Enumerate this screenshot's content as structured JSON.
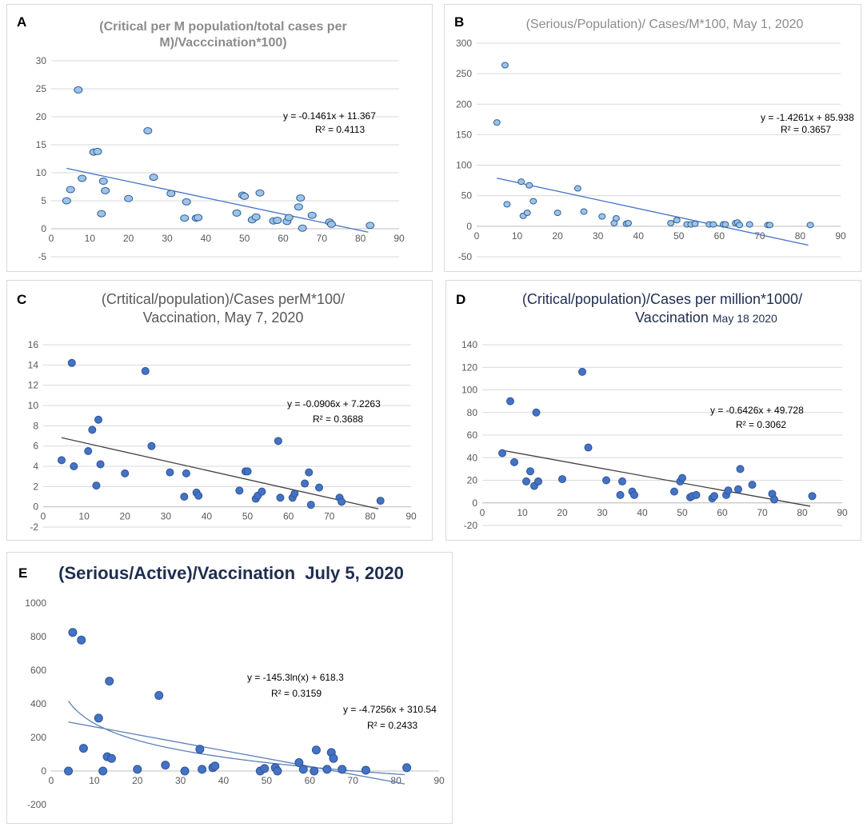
{
  "figure": {
    "panels": [
      {
        "letter": "A",
        "chart_data": {
          "type": "scatter",
          "title": "(Critical per M population/total cases per M)/Vacccination*100)",
          "title_lines": [
            "(Critical per M population/total cases per",
            "M)/Vacccination*100)"
          ],
          "ylim": [
            -5,
            30
          ],
          "yticks": [
            -5,
            0,
            5,
            10,
            15,
            20,
            25,
            30
          ],
          "xlim": [
            0,
            90
          ],
          "xticks": [
            0,
            10,
            20,
            30,
            40,
            50,
            60,
            70,
            80,
            90
          ],
          "grid": true,
          "points": [
            [
              4,
              5
            ],
            [
              5,
              7
            ],
            [
              7,
              24.8
            ],
            [
              8,
              9
            ],
            [
              11,
              13.7
            ],
            [
              12,
              13.8
            ],
            [
              13,
              2.7
            ],
            [
              13.5,
              8.5
            ],
            [
              14,
              6.8
            ],
            [
              20,
              5.4
            ],
            [
              25,
              17.5
            ],
            [
              26.5,
              9.2
            ],
            [
              31,
              6.3
            ],
            [
              34.5,
              1.9
            ],
            [
              35,
              4.8
            ],
            [
              37.5,
              1.9
            ],
            [
              38,
              2
            ],
            [
              48,
              2.8
            ],
            [
              49.5,
              6
            ],
            [
              50,
              5.8
            ],
            [
              52,
              1.6
            ],
            [
              53,
              2.1
            ],
            [
              54,
              6.4
            ],
            [
              57.5,
              1.4
            ],
            [
              58.5,
              1.5
            ],
            [
              61,
              1.3
            ],
            [
              61.5,
              2
            ],
            [
              64,
              3.9
            ],
            [
              64.5,
              5.5
            ],
            [
              65,
              0.1
            ],
            [
              67.5,
              2.4
            ],
            [
              72,
              1.2
            ],
            [
              72.5,
              0.8
            ],
            [
              82.5,
              0.6
            ]
          ],
          "trend": {
            "type": "linear",
            "slope": -0.1461,
            "intercept": 11.367,
            "x_range": [
              4,
              82
            ]
          },
          "equation": "y = -0.1461x + 11.367",
          "r2": "R² = 0.4113"
        }
      },
      {
        "letter": "B",
        "chart_data": {
          "type": "scatter",
          "title": "(Serious/Population)/ Cases/M*100, May 1, 2020",
          "title_lines": [
            "(Serious/Population)/ Cases/M*100, May 1, 2020"
          ],
          "ylim": [
            -50,
            300
          ],
          "yticks": [
            -50,
            0,
            50,
            100,
            150,
            200,
            250,
            300
          ],
          "xlim": [
            0,
            90
          ],
          "xticks": [
            0,
            10,
            20,
            30,
            40,
            50,
            60,
            70,
            80,
            90
          ],
          "grid": true,
          "points": [
            [
              5,
              170
            ],
            [
              7,
              264
            ],
            [
              7.5,
              36
            ],
            [
              11,
              73
            ],
            [
              11.5,
              17
            ],
            [
              12.5,
              22
            ],
            [
              13,
              67
            ],
            [
              14,
              41
            ],
            [
              20,
              22
            ],
            [
              25,
              62
            ],
            [
              26.5,
              24
            ],
            [
              31,
              16
            ],
            [
              34,
              5
            ],
            [
              34.5,
              13
            ],
            [
              37,
              4
            ],
            [
              37.5,
              5
            ],
            [
              48,
              5
            ],
            [
              49.5,
              10
            ],
            [
              52,
              3
            ],
            [
              53,
              3
            ],
            [
              54,
              4
            ],
            [
              57.5,
              3
            ],
            [
              58.5,
              3
            ],
            [
              61,
              3
            ],
            [
              61.5,
              3
            ],
            [
              64,
              5
            ],
            [
              64.5,
              6
            ],
            [
              65,
              2
            ],
            [
              67.5,
              3
            ],
            [
              72,
              2
            ],
            [
              72.5,
              2
            ],
            [
              82.5,
              2
            ]
          ],
          "trend": {
            "type": "linear",
            "slope": -1.4261,
            "intercept": 85.938,
            "x_range": [
              5,
              82
            ]
          },
          "equation": "y = -1.4261x + 85.938",
          "r2": "R² = 0.3657"
        }
      },
      {
        "letter": "C",
        "chart_data": {
          "type": "scatter",
          "title": "(Crtitical/population)/Cases perM*100/ Vaccination, May 7, 2020",
          "title_lines": [
            "(Crtitical/population)/Cases perM*100/",
            "Vaccination, May 7, 2020"
          ],
          "ylim": [
            -2,
            16
          ],
          "yticks": [
            -2,
            0,
            2,
            4,
            6,
            8,
            10,
            12,
            14,
            16
          ],
          "xlim": [
            0,
            90
          ],
          "xticks": [
            0,
            10,
            20,
            30,
            40,
            50,
            60,
            70,
            80,
            90
          ],
          "grid": true,
          "points": [
            [
              4.5,
              4.6
            ],
            [
              7,
              14.2
            ],
            [
              7.5,
              4.0
            ],
            [
              11,
              5.5
            ],
            [
              12,
              7.6
            ],
            [
              13,
              2.1
            ],
            [
              13.5,
              8.6
            ],
            [
              14,
              4.2
            ],
            [
              20,
              3.3
            ],
            [
              25,
              13.4
            ],
            [
              26.5,
              6.0
            ],
            [
              31,
              3.4
            ],
            [
              34.5,
              1.0
            ],
            [
              35,
              3.3
            ],
            [
              37.5,
              1.4
            ],
            [
              38,
              1.1
            ],
            [
              48,
              1.6
            ],
            [
              49.5,
              3.5
            ],
            [
              50,
              3.5
            ],
            [
              52,
              0.8
            ],
            [
              52.5,
              1.1
            ],
            [
              53.5,
              1.5
            ],
            [
              57.5,
              6.5
            ],
            [
              58,
              0.9
            ],
            [
              61,
              0.9
            ],
            [
              61.5,
              1.3
            ],
            [
              64,
              2.3
            ],
            [
              65,
              3.4
            ],
            [
              65.5,
              0.2
            ],
            [
              67.5,
              1.9
            ],
            [
              72.5,
              0.9
            ],
            [
              73,
              0.5
            ],
            [
              82.5,
              0.6
            ]
          ],
          "trend": {
            "type": "linear",
            "slope": -0.0906,
            "intercept": 7.2263,
            "x_range": [
              4.5,
              82
            ]
          },
          "equation": "y = -0.0906x + 7.2263",
          "r2": "R² = 0.3688"
        }
      },
      {
        "letter": "D",
        "chart_data": {
          "type": "scatter",
          "title": "(Critical/population)/Cases per million*1000/ Vaccination May 18 2020",
          "title_lines": [
            "(Critical/population)/Cases per million*1000/",
            "Vaccination"
          ],
          "title_date": "May 18 2020",
          "ylim": [
            -20,
            140
          ],
          "yticks": [
            -20,
            0,
            20,
            40,
            60,
            80,
            100,
            120,
            140
          ],
          "xlim": [
            0,
            90
          ],
          "xticks": [
            0,
            10,
            20,
            30,
            40,
            50,
            60,
            70,
            80,
            90
          ],
          "grid": true,
          "points": [
            [
              5,
              44
            ],
            [
              7,
              90
            ],
            [
              8,
              36
            ],
            [
              11,
              19
            ],
            [
              12,
              28
            ],
            [
              13,
              15
            ],
            [
              13.5,
              80
            ],
            [
              14,
              19
            ],
            [
              20,
              21
            ],
            [
              25,
              116
            ],
            [
              26.5,
              49
            ],
            [
              31,
              20
            ],
            [
              34.5,
              7
            ],
            [
              35,
              19
            ],
            [
              37.5,
              10
            ],
            [
              38,
              7
            ],
            [
              48,
              10
            ],
            [
              49.5,
              19
            ],
            [
              50,
              22
            ],
            [
              52,
              5
            ],
            [
              52.5,
              6
            ],
            [
              53.5,
              7
            ],
            [
              57.5,
              4
            ],
            [
              58,
              6
            ],
            [
              61,
              7
            ],
            [
              61.5,
              11
            ],
            [
              64,
              12
            ],
            [
              64.5,
              30
            ],
            [
              67.5,
              16
            ],
            [
              72.5,
              8
            ],
            [
              73,
              3
            ],
            [
              82.5,
              6
            ]
          ],
          "trend": {
            "type": "linear",
            "slope": -0.6426,
            "intercept": 49.728,
            "x_range": [
              5,
              82
            ]
          },
          "equation": "y = -0.6426x + 49.728",
          "r2": "R² = 0.3062"
        }
      },
      {
        "letter": "E",
        "chart_data": {
          "type": "scatter",
          "title": "(Serious/Active)/Vaccination July 5, 2020",
          "title_lines": [
            "(Serious/Active)/Vaccination  July 5, 2020"
          ],
          "ylim": [
            -200,
            1000
          ],
          "yticks": [
            -200,
            0,
            200,
            400,
            600,
            800,
            1000
          ],
          "xlim": [
            0,
            90
          ],
          "xticks": [
            0,
            10,
            20,
            30,
            40,
            50,
            60,
            70,
            80,
            90
          ],
          "grid": false,
          "points": [
            [
              4,
              0
            ],
            [
              5,
              825
            ],
            [
              7,
              780
            ],
            [
              7.5,
              135
            ],
            [
              11,
              315
            ],
            [
              12,
              0
            ],
            [
              13,
              85
            ],
            [
              13.5,
              535
            ],
            [
              14,
              75
            ],
            [
              20,
              10
            ],
            [
              25,
              450
            ],
            [
              26.5,
              35
            ],
            [
              31,
              0
            ],
            [
              34.5,
              130
            ],
            [
              35,
              10
            ],
            [
              37.5,
              20
            ],
            [
              38,
              30
            ],
            [
              48.5,
              0
            ],
            [
              49.5,
              15
            ],
            [
              52,
              20
            ],
            [
              52.5,
              0
            ],
            [
              57.5,
              50
            ],
            [
              58.5,
              10
            ],
            [
              61.5,
              125
            ],
            [
              61,
              0
            ],
            [
              64,
              10
            ],
            [
              65,
              110
            ],
            [
              65.5,
              75
            ],
            [
              67.5,
              10
            ],
            [
              73,
              5
            ],
            [
              82.5,
              20
            ]
          ],
          "trend": {
            "type": "linear",
            "slope": -4.7256,
            "intercept": 310.54,
            "x_range": [
              4,
              82
            ]
          },
          "trend_log": {
            "type": "log",
            "a": -145.3,
            "b": 618.3,
            "x_range": [
              4,
              82
            ]
          },
          "equation": "y = -4.7256x + 310.54",
          "r2": "R² = 0.2433",
          "equation_log": "y = -145.3ln(x) + 618.3",
          "r2_log": "R² = 0.3159"
        }
      }
    ]
  }
}
